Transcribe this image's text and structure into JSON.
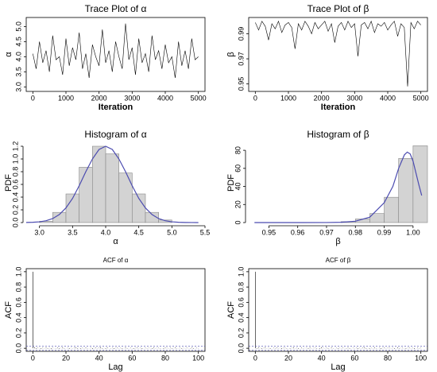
{
  "chart_data": [
    {
      "type": "line",
      "title": "Trace Plot of α",
      "xlabel": "Iteration",
      "ylabel": "α",
      "color": "#000000",
      "x": [
        0,
        100,
        200,
        300,
        400,
        500,
        600,
        700,
        800,
        900,
        1000,
        1100,
        1200,
        1300,
        1400,
        1500,
        1600,
        1700,
        1800,
        1900,
        2000,
        2100,
        2200,
        2300,
        2400,
        2500,
        2600,
        2700,
        2800,
        2900,
        3000,
        3100,
        3200,
        3300,
        3400,
        3500,
        3600,
        3700,
        3800,
        3900,
        4000,
        4100,
        4200,
        4300,
        4400,
        4500,
        4600,
        4700,
        4800,
        4900,
        5000
      ],
      "values": [
        4.1,
        3.6,
        4.5,
        3.8,
        4.2,
        3.5,
        4.7,
        3.9,
        4.0,
        3.4,
        4.6,
        3.7,
        4.3,
        3.9,
        4.8,
        3.6,
        4.1,
        3.3,
        4.4,
        4.0,
        3.7,
        4.9,
        3.8,
        4.2,
        3.5,
        4.5,
        4.0,
        3.6,
        5.1,
        3.9,
        4.3,
        3.4,
        4.6,
        3.8,
        4.1,
        3.5,
        4.7,
        3.9,
        4.2,
        3.6,
        4.4,
        3.8,
        4.0,
        3.3,
        4.5,
        3.7,
        4.2,
        3.6,
        4.6,
        3.9,
        4.0
      ],
      "xlim": [
        -200,
        5200
      ],
      "xticks": [
        0,
        1000,
        2000,
        3000,
        4000,
        5000
      ],
      "ylim": [
        2.85,
        5.3
      ],
      "yticks": [
        {
          "value": 3,
          "label": "3.0"
        },
        3.5,
        {
          "value": 4,
          "label": "4.0"
        },
        4.5,
        {
          "value": 5,
          "label": "5.0"
        }
      ]
    },
    {
      "type": "line",
      "title": "Trace Plot of β",
      "xlabel": "Iteration",
      "ylabel": "β",
      "color": "#000000",
      "x": [
        0,
        100,
        200,
        300,
        400,
        500,
        600,
        700,
        800,
        900,
        1000,
        1100,
        1200,
        1300,
        1400,
        1500,
        1600,
        1700,
        1800,
        1900,
        2000,
        2100,
        2200,
        2300,
        2400,
        2500,
        2600,
        2700,
        2800,
        2900,
        3000,
        3100,
        3200,
        3300,
        3400,
        3500,
        3600,
        3700,
        3800,
        3900,
        4000,
        4100,
        4200,
        4300,
        4400,
        4500,
        4600,
        4700,
        4800,
        4900,
        5000
      ],
      "values": [
        0.999,
        0.993,
        1.0,
        0.996,
        0.985,
        0.998,
        0.994,
        1.0,
        0.991,
        0.997,
        0.999,
        0.995,
        0.978,
        0.998,
        0.993,
        1.0,
        0.996,
        0.99,
        0.999,
        0.994,
        0.997,
        1.0,
        0.992,
        0.998,
        0.983,
        0.996,
        0.999,
        0.993,
        1.0,
        0.995,
        0.998,
        0.972,
        0.997,
        0.999,
        0.994,
        1.0,
        0.991,
        0.998,
        0.996,
        0.999,
        0.993,
        0.997,
        1.0,
        0.988,
        0.998,
        0.995,
        0.948,
        0.999,
        0.994,
        1.0,
        0.997
      ],
      "xlim": [
        -200,
        5200
      ],
      "xticks": [
        0,
        1000,
        2000,
        3000,
        4000,
        5000
      ],
      "ylim": [
        0.944,
        1.003
      ],
      "yticks": [
        0.95,
        0.97,
        0.99
      ]
    },
    {
      "type": "histogram",
      "title": "Histogram of α",
      "xlabel": "α",
      "ylabel": "PDF",
      "color": "#d3d3d3",
      "bins": [
        3.0,
        3.2,
        3.4,
        3.6,
        3.8,
        4.0,
        4.2,
        4.4,
        4.6,
        4.8,
        5.0
      ],
      "counts": [
        0.02,
        0.16,
        0.45,
        0.87,
        1.2,
        1.08,
        0.78,
        0.45,
        0.16,
        0.04
      ],
      "density": {
        "color": "#4b4bb0",
        "x": [
          2.8,
          2.9,
          3.0,
          3.1,
          3.2,
          3.3,
          3.4,
          3.5,
          3.6,
          3.7,
          3.8,
          3.9,
          4.0,
          4.1,
          4.2,
          4.3,
          4.4,
          4.5,
          4.6,
          4.7,
          4.8,
          4.9,
          5.0,
          5.1,
          5.2,
          5.3,
          5.4
        ],
        "values": [
          0.002,
          0.005,
          0.012,
          0.029,
          0.063,
          0.126,
          0.23,
          0.38,
          0.58,
          0.8,
          1.0,
          1.15,
          1.2,
          1.15,
          1.0,
          0.8,
          0.58,
          0.38,
          0.23,
          0.126,
          0.063,
          0.029,
          0.012,
          0.005,
          0.002,
          0.001,
          0
        ]
      },
      "xlim": [
        2.8,
        5.5
      ],
      "xticks": [
        {
          "value": 3,
          "label": "3.0"
        },
        3.5,
        {
          "value": 4,
          "label": "4.0"
        },
        4.5,
        {
          "value": 5,
          "label": "5.0"
        },
        5.5
      ],
      "ylim": [
        0,
        1.25
      ],
      "yticks": [
        {
          "value": 0,
          "label": "0.0"
        },
        0.2,
        0.4,
        0.6,
        0.8,
        {
          "value": 1,
          "label": "1.0"
        },
        1.2
      ]
    },
    {
      "type": "histogram",
      "title": "Histogram of β",
      "xlabel": "β",
      "ylabel": "PDF",
      "color": "#d3d3d3",
      "bins": [
        0.975,
        0.98,
        0.985,
        0.99,
        0.995,
        1.0,
        1.005
      ],
      "counts": [
        1,
        4,
        10,
        28,
        71,
        85
      ],
      "density": {
        "color": "#4b4bb0",
        "x": [
          0.945,
          0.96,
          0.97,
          0.975,
          0.98,
          0.985,
          0.99,
          0.993,
          0.995,
          0.997,
          0.998,
          0.999,
          1.0,
          1.001,
          1.002,
          1.003
        ],
        "values": [
          0,
          0,
          0.05,
          0.3,
          1.5,
          6,
          22,
          40,
          60,
          75,
          78,
          76,
          68,
          55,
          42,
          30
        ]
      },
      "xlim": [
        0.943,
        1.005
      ],
      "xticks": [
        0.95,
        0.96,
        0.97,
        0.98,
        0.99,
        {
          "value": 1,
          "label": "1.00"
        }
      ],
      "ylim": [
        0,
        88
      ],
      "yticks": [
        0,
        20,
        40,
        60,
        80
      ]
    },
    {
      "type": "stem",
      "title": "ACF  of α",
      "xlabel": "Lag",
      "ylabel": "ACF",
      "color": "#000000",
      "ci": 0.028,
      "ci_color": "#4b4bb0",
      "x": [
        0,
        1,
        2,
        3,
        4,
        5,
        6,
        7,
        8,
        9,
        10,
        11,
        12,
        13,
        14,
        15,
        16,
        17,
        18,
        19,
        20,
        21,
        22,
        23,
        24,
        25,
        26,
        27,
        28,
        29,
        30,
        31,
        32,
        33,
        34,
        35,
        36,
        37,
        38,
        39,
        40,
        41,
        42,
        43,
        44,
        45,
        46,
        47,
        48,
        49,
        50,
        51,
        52,
        53,
        54,
        55,
        56,
        57,
        58,
        59,
        60,
        61,
        62,
        63,
        64,
        65,
        66,
        67,
        68,
        69,
        70,
        71,
        72,
        73,
        74,
        75,
        76,
        77,
        78,
        79,
        80,
        81,
        82,
        83,
        84,
        85,
        86,
        87,
        88,
        89,
        90,
        91,
        92,
        93,
        94,
        95,
        96,
        97,
        98,
        99,
        100
      ],
      "values": [
        1,
        0.012,
        -0.008,
        0.005,
        0.003,
        -0.01,
        0.007,
        -0.002,
        0.009,
        -0.006,
        0.004,
        -0.011,
        0.006,
        0.002,
        -0.004,
        0.008,
        -0.007,
        0.003,
        0.01,
        -0.005,
        0.001,
        0.006,
        -0.009,
        0.004,
        -0.002,
        0.007,
        0.011,
        -0.006,
        0.003,
        -0.008,
        0.005,
        -0.003,
        0.009,
        -0.004,
        0.002,
        0.006,
        -0.01,
        0.004,
        0.008,
        -0.002,
        0.005,
        0.013,
        -0.006,
        0.003,
        -0.007,
        0.009,
        0.002,
        -0.004,
        0.006,
        -0.009,
        0.004,
        0.007,
        -0.003,
        0.005,
        -0.008,
        0.002,
        0.01,
        -0.005,
        0.003,
        0.006,
        -0.002,
        -0.007,
        0.004,
        0.008,
        -0.003,
        0.005,
        -0.009,
        0.002,
        0.007,
        -0.004,
        0.006,
        0.003,
        -0.008,
        0.009,
        -0.002,
        0.004,
        0.006,
        -0.005,
        0.002,
        -0.007,
        0.008,
        0.005,
        -0.003,
        0.007,
        -0.006,
        0.003,
        0.009,
        -0.004,
        0.002,
        0.006,
        -0.008,
        0.004,
        -0.002,
        0.007,
        0.003,
        -0.005,
        0.008,
        -0.006,
        0.002,
        0.005,
        -0.003
      ],
      "xlim": [
        -4,
        104
      ],
      "xticks": [
        0,
        20,
        40,
        60,
        80,
        100
      ],
      "ylim": [
        -0.04,
        1.04
      ],
      "yticks": [
        {
          "value": 0,
          "label": "0.0"
        },
        0.2,
        0.4,
        0.6,
        0.8,
        {
          "value": 1,
          "label": "1.0"
        }
      ]
    },
    {
      "type": "stem",
      "title": "ACF  of β",
      "xlabel": "Lag",
      "ylabel": "ACF",
      "color": "#000000",
      "ci": 0.028,
      "ci_color": "#4b4bb0",
      "x": [
        0,
        1,
        2,
        3,
        4,
        5,
        6,
        7,
        8,
        9,
        10,
        11,
        12,
        13,
        14,
        15,
        16,
        17,
        18,
        19,
        20,
        21,
        22,
        23,
        24,
        25,
        26,
        27,
        28,
        29,
        30,
        31,
        32,
        33,
        34,
        35,
        36,
        37,
        38,
        39,
        40,
        41,
        42,
        43,
        44,
        45,
        46,
        47,
        48,
        49,
        50,
        51,
        52,
        53,
        54,
        55,
        56,
        57,
        58,
        59,
        60,
        61,
        62,
        63,
        64,
        65,
        66,
        67,
        68,
        69,
        70,
        71,
        72,
        73,
        74,
        75,
        76,
        77,
        78,
        79,
        80,
        81,
        82,
        83,
        84,
        85,
        86,
        87,
        88,
        89,
        90,
        91,
        92,
        93,
        94,
        95,
        96,
        97,
        98,
        99,
        100
      ],
      "values": [
        1,
        -0.006,
        0.009,
        0.003,
        -0.007,
        0.004,
        0.01,
        -0.003,
        0.005,
        -0.008,
        0.002,
        0.006,
        -0.004,
        0.008,
        -0.002,
        0.003,
        -0.009,
        0.005,
        0.007,
        -0.005,
        0.002,
        -0.006,
        0.004,
        0.011,
        -0.003,
        0.006,
        -0.007,
        0.002,
        0.008,
        -0.004,
        0.003,
        0.005,
        -0.008,
        0.009,
        -0.002,
        0.004,
        0.006,
        -0.005,
        0.002,
        -0.007,
        0.012,
        0.005,
        -0.003,
        0.007,
        -0.006,
        0.003,
        0.009,
        -0.004,
        0.002,
        0.006,
        -0.008,
        0.004,
        -0.002,
        0.007,
        0.003,
        -0.005,
        0.008,
        -0.006,
        0.002,
        0.005,
        -0.003,
        0.006,
        -0.009,
        0.004,
        -0.002,
        0.007,
        0.011,
        -0.006,
        0.003,
        -0.008,
        0.005,
        -0.003,
        0.009,
        -0.004,
        0.002,
        0.006,
        -0.01,
        0.004,
        0.008,
        -0.002,
        0.005,
        0.007,
        -0.003,
        0.005,
        -0.008,
        0.002,
        0.01,
        -0.005,
        0.003,
        0.006,
        -0.002,
        -0.007,
        0.004,
        0.008,
        -0.003,
        0.005,
        -0.009,
        0.002,
        0.007,
        -0.004,
        0.006
      ],
      "xlim": [
        -4,
        104
      ],
      "xticks": [
        0,
        20,
        40,
        60,
        80,
        100
      ],
      "ylim": [
        -0.04,
        1.04
      ],
      "yticks": [
        {
          "value": 0,
          "label": "0.0"
        },
        0.2,
        0.4,
        0.6,
        0.8,
        {
          "value": 1,
          "label": "1.0"
        }
      ]
    }
  ]
}
